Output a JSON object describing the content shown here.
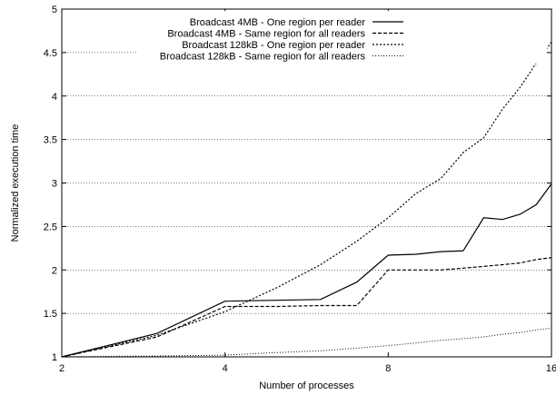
{
  "chart_data": {
    "type": "line",
    "title": "",
    "xlabel": "Number of processes",
    "ylabel": "Normalized execution time",
    "x_scale": "log2",
    "xlim": [
      2,
      16
    ],
    "ylim": [
      1,
      5
    ],
    "x_ticks": [
      2,
      4,
      8,
      16
    ],
    "x_tick_labels": [
      "2",
      "4",
      "8",
      "16"
    ],
    "y_ticks": [
      1,
      1.5,
      2,
      2.5,
      3,
      3.5,
      4,
      4.5,
      5
    ],
    "y_tick_labels": [
      "1",
      "1.5",
      "2",
      "2.5",
      "3",
      "3.5",
      "4",
      "4.5",
      "5"
    ],
    "grid": "horizontal dotted",
    "legend_position": "top-right",
    "series": [
      {
        "name": "Broadcast 4MB - One region per reader",
        "style": "solid",
        "x": [
          2,
          3,
          4,
          6,
          7,
          8,
          9,
          10,
          11,
          12,
          13,
          14,
          15,
          16
        ],
        "y": [
          1,
          1.27,
          1.64,
          1.66,
          1.86,
          2.17,
          2.18,
          2.21,
          2.22,
          2.6,
          2.58,
          2.64,
          2.75,
          2.99
        ]
      },
      {
        "name": "Broadcast 4MB - Same region for all readers",
        "style": "dashed",
        "x": [
          2,
          3,
          4,
          5,
          6,
          7,
          8,
          9,
          10,
          11,
          12,
          13,
          14,
          15,
          16
        ],
        "y": [
          1,
          1.23,
          1.58,
          1.58,
          1.59,
          1.59,
          2,
          2,
          2,
          2.02,
          2.04,
          2.06,
          2.08,
          2.12,
          2.14
        ]
      },
      {
        "name": "Broadcast 128kB - One region per reader",
        "style": "dotted-dense",
        "x": [
          2,
          3,
          4,
          5,
          6,
          7,
          8,
          9,
          10,
          11,
          12,
          13,
          14,
          15,
          16
        ],
        "y": [
          1,
          1.25,
          1.52,
          1.8,
          2.06,
          2.33,
          2.6,
          2.88,
          3.05,
          3.35,
          3.52,
          3.85,
          4.1,
          4.38,
          4.62
        ]
      },
      {
        "name": "Broadcast 128kB - Same region for all readers",
        "style": "dotted-sparse",
        "x": [
          2,
          3,
          4,
          5,
          6,
          7,
          8,
          9,
          10,
          11,
          12,
          13,
          14,
          15,
          16
        ],
        "y": [
          1,
          1.01,
          1.02,
          1.05,
          1.07,
          1.1,
          1.13,
          1.16,
          1.19,
          1.21,
          1.23,
          1.26,
          1.28,
          1.31,
          1.33
        ]
      }
    ]
  }
}
